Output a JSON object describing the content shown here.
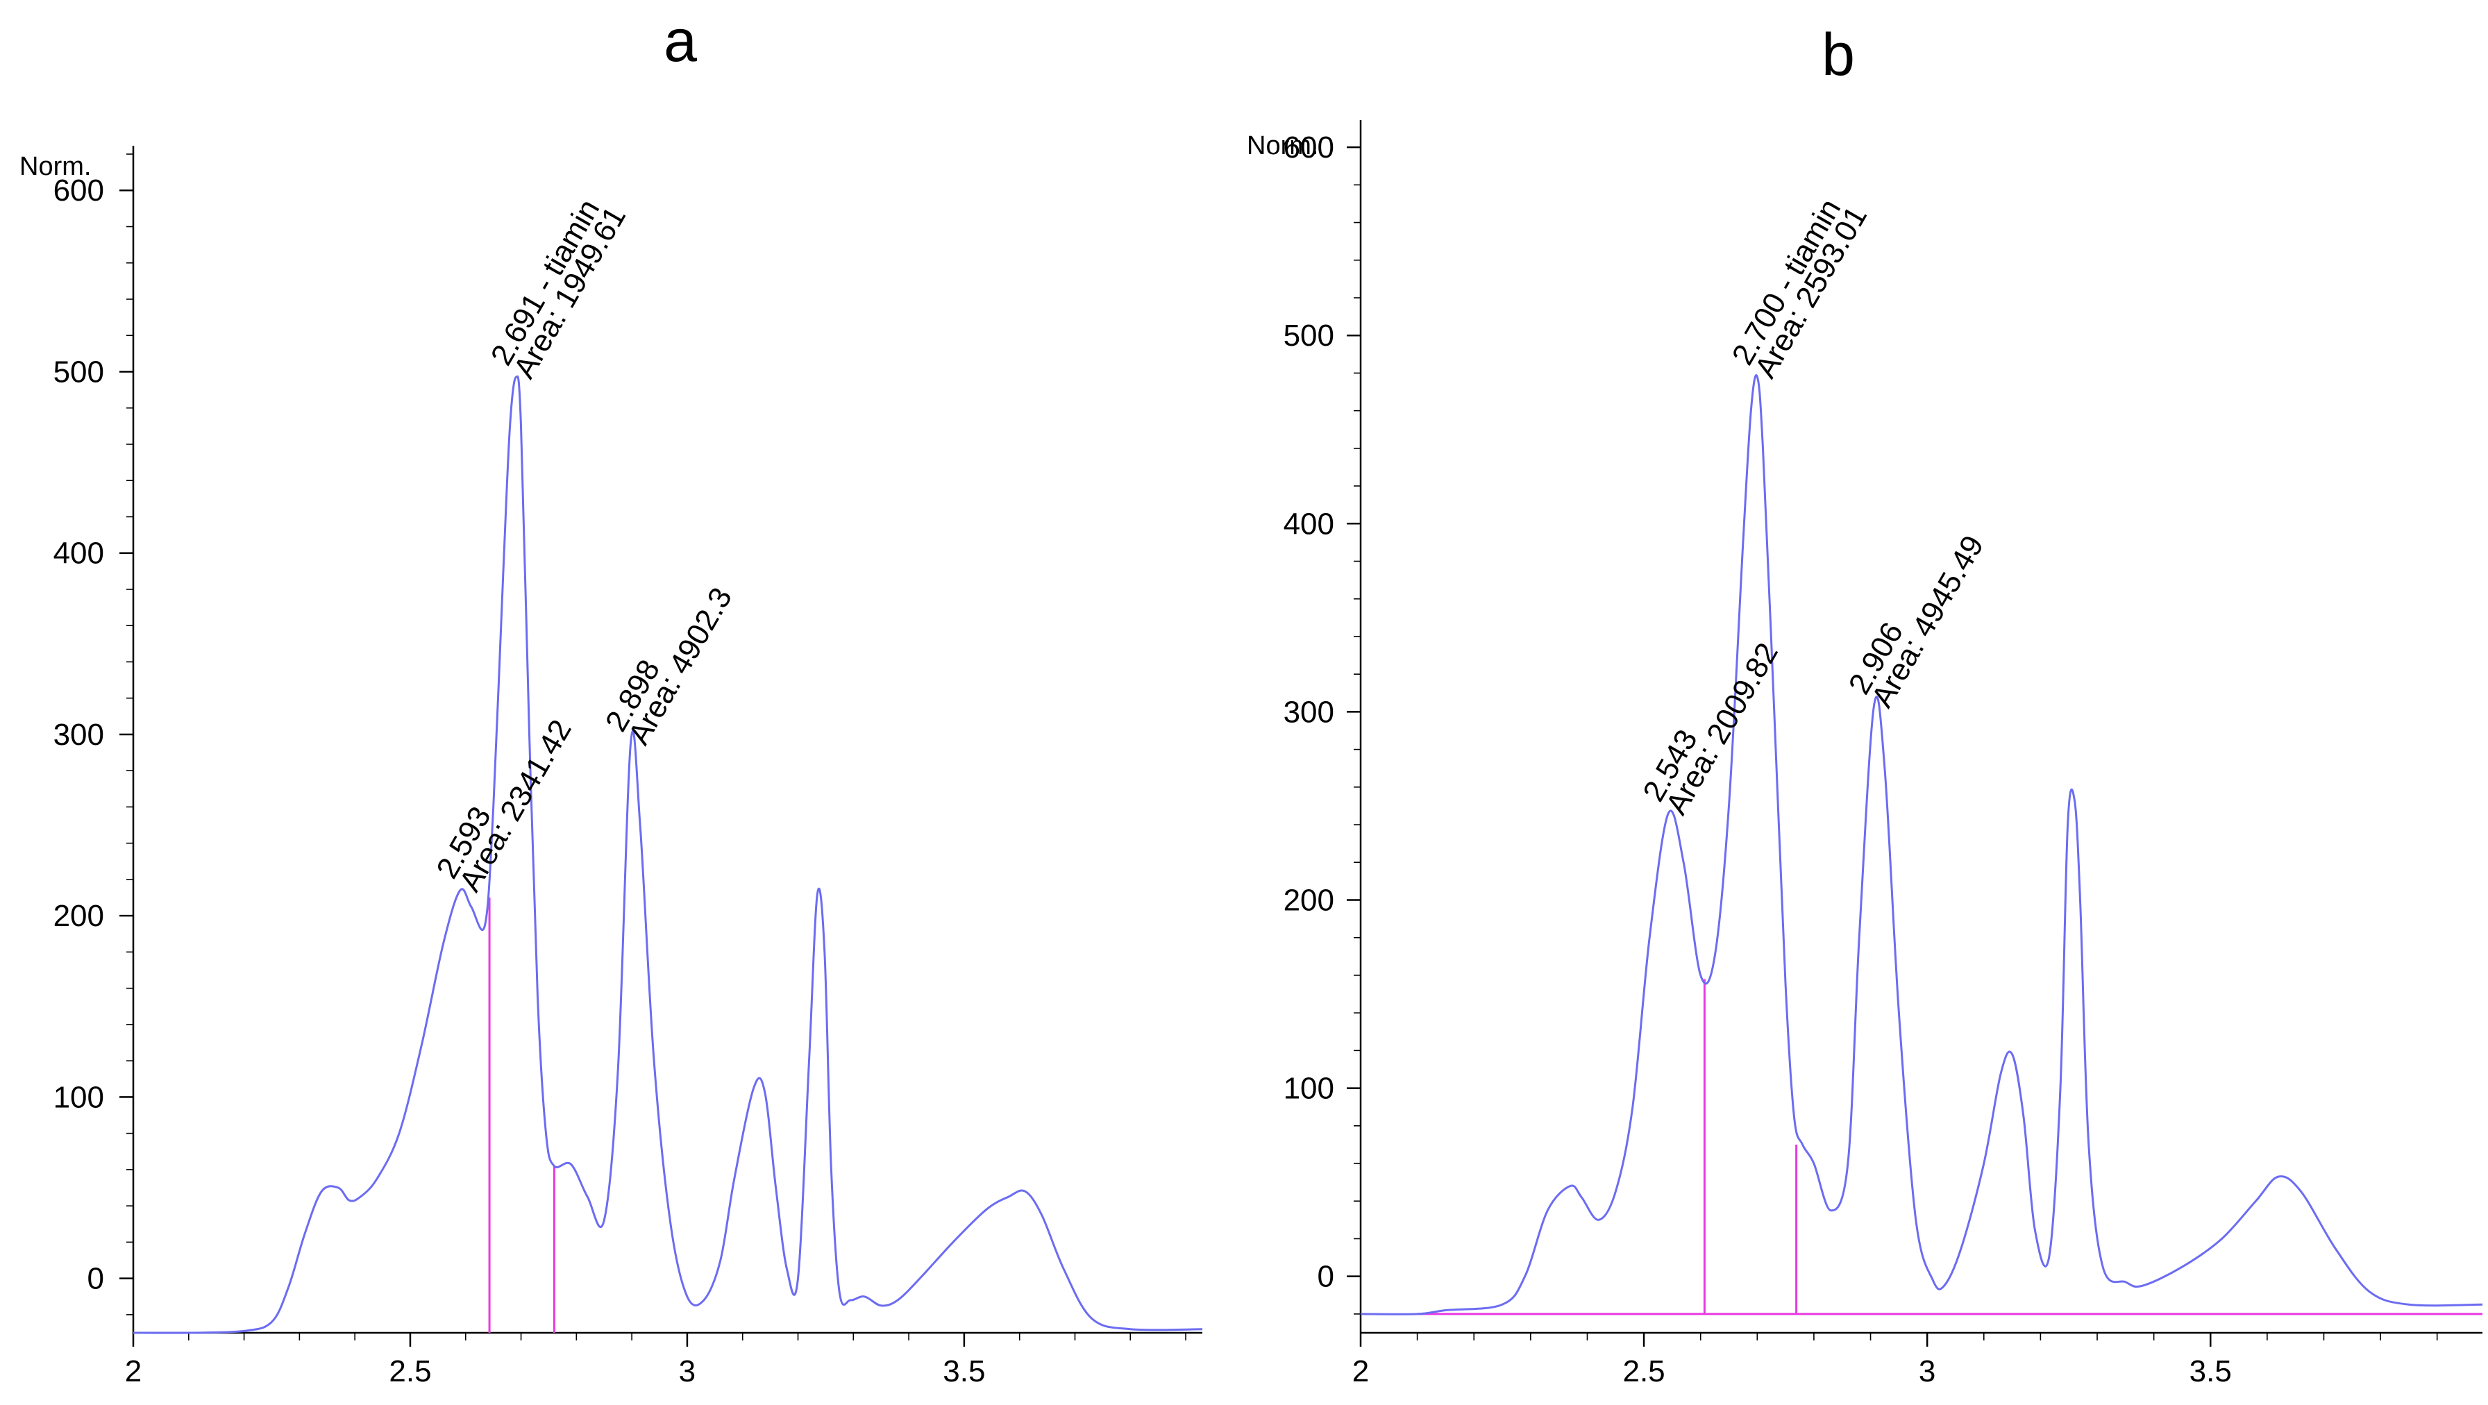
{
  "figure": {
    "panel_labels": [
      "a",
      "b"
    ]
  },
  "chart_data": [
    {
      "type": "line",
      "panel": "a",
      "title": "a",
      "ylabel": "Norm.",
      "xlabel": "",
      "xlim": [
        2.0,
        3.93
      ],
      "ylim": [
        -30,
        620
      ],
      "x_ticks": [
        2,
        2.5,
        3,
        3.5
      ],
      "x_tick_labels": [
        "2",
        "2.5",
        "3",
        "3.5"
      ],
      "y_ticks": [
        0,
        100,
        200,
        300,
        400,
        500,
        600
      ],
      "y_tick_labels": [
        "0",
        "100",
        "200",
        "300",
        "400",
        "500",
        "600"
      ],
      "x_minor_step": 0.1,
      "y_minor_step": 20,
      "baseline": -28,
      "trace": {
        "x": [
          2.0,
          2.1,
          2.2,
          2.25,
          2.28,
          2.31,
          2.34,
          2.37,
          2.39,
          2.41,
          2.44,
          2.48,
          2.52,
          2.56,
          2.59,
          2.61,
          2.635,
          2.65,
          2.668,
          2.68,
          2.691,
          2.7,
          2.715,
          2.73,
          2.745,
          2.76,
          2.79,
          2.82,
          2.85,
          2.875,
          2.898,
          2.915,
          2.94,
          2.97,
          3.0,
          3.03,
          3.06,
          3.085,
          3.12,
          3.14,
          3.16,
          3.18,
          3.2,
          3.22,
          3.235,
          3.248,
          3.26,
          3.275,
          3.295,
          3.32,
          3.35,
          3.38,
          3.42,
          3.48,
          3.54,
          3.58,
          3.61,
          3.64,
          3.68,
          3.73,
          3.8,
          3.93
        ],
        "y": [
          -30,
          -30,
          -29,
          -24,
          -5,
          25,
          48,
          50,
          43,
          45,
          55,
          80,
          128,
          185,
          214,
          205,
          195,
          260,
          390,
          470,
          497,
          470,
          300,
          155,
          80,
          62,
          63,
          45,
          32,
          115,
          295,
          250,
          120,
          30,
          -10,
          -12,
          10,
          55,
          105,
          103,
          50,
          5,
          0,
          120,
          212,
          180,
          60,
          -8,
          -12,
          -10,
          -15,
          -12,
          0,
          20,
          38,
          45,
          48,
          35,
          5,
          -22,
          -28,
          -28
        ]
      },
      "integration_lines": [
        {
          "x": 2.643,
          "top": 210
        },
        {
          "x": 2.76,
          "top": 62
        }
      ],
      "annotations": [
        {
          "x": 2.593,
          "y": 214,
          "lines": [
            "2.593",
            "Area: 2341.42"
          ]
        },
        {
          "x": 2.691,
          "y": 497,
          "lines": [
            "2.691 - tiamin",
            "Area: 1949.61"
          ]
        },
        {
          "x": 2.898,
          "y": 295,
          "lines": [
            "2.898",
            "Area: 4902.3"
          ]
        }
      ]
    },
    {
      "type": "line",
      "panel": "b",
      "title": "b",
      "ylabel": "Norm.",
      "xlabel": "",
      "xlim": [
        2.0,
        3.98
      ],
      "ylim": [
        -30,
        610
      ],
      "x_ticks": [
        2,
        2.5,
        3,
        3.5
      ],
      "x_tick_labels": [
        "2",
        "2.5",
        "3",
        "3.5"
      ],
      "y_ticks": [
        0,
        100,
        200,
        300,
        400,
        500,
        600
      ],
      "y_tick_labels": [
        "0",
        "100",
        "200",
        "300",
        "400",
        "500",
        "600"
      ],
      "x_minor_step": 0.1,
      "y_minor_step": 20,
      "baseline_line": {
        "x": [
          2.1,
          3.98
        ],
        "y": [
          -20,
          -20
        ]
      },
      "trace": {
        "x": [
          2.0,
          2.1,
          2.15,
          2.25,
          2.29,
          2.33,
          2.37,
          2.39,
          2.42,
          2.45,
          2.48,
          2.51,
          2.543,
          2.57,
          2.6,
          2.625,
          2.65,
          2.675,
          2.689,
          2.7,
          2.71,
          2.73,
          2.75,
          2.765,
          2.78,
          2.8,
          2.83,
          2.86,
          2.88,
          2.906,
          2.925,
          2.95,
          2.98,
          3.01,
          3.03,
          3.06,
          3.1,
          3.13,
          3.15,
          3.17,
          3.19,
          3.215,
          3.235,
          3.248,
          3.26,
          3.27,
          3.285,
          3.31,
          3.35,
          3.38,
          3.45,
          3.52,
          3.58,
          3.62,
          3.66,
          3.72,
          3.78,
          3.85,
          3.98
        ],
        "y": [
          -20,
          -20,
          -18,
          -15,
          0,
          35,
          48,
          42,
          30,
          45,
          90,
          180,
          246,
          220,
          160,
          170,
          250,
          390,
          460,
          478,
          440,
          300,
          155,
          85,
          70,
          60,
          35,
          60,
          180,
          303,
          270,
          140,
          30,
          -2,
          -5,
          15,
          60,
          108,
          118,
          85,
          25,
          10,
          100,
          240,
          253,
          200,
          70,
          5,
          -3,
          -5,
          5,
          20,
          40,
          53,
          45,
          15,
          -8,
          -15,
          -15
        ]
      },
      "integration_lines": [
        {
          "x": 2.607,
          "top": 158
        },
        {
          "x": 2.769,
          "top": 70
        }
      ],
      "annotations": [
        {
          "x": 2.543,
          "y": 246,
          "lines": [
            "2.543",
            "Area: 2009.82"
          ]
        },
        {
          "x": 2.7,
          "y": 478,
          "lines": [
            "2.700 - tiamin",
            "Area: 2593.01"
          ]
        },
        {
          "x": 2.906,
          "y": 303,
          "lines": [
            "2.906",
            "Area: 4945.49"
          ]
        }
      ]
    }
  ]
}
